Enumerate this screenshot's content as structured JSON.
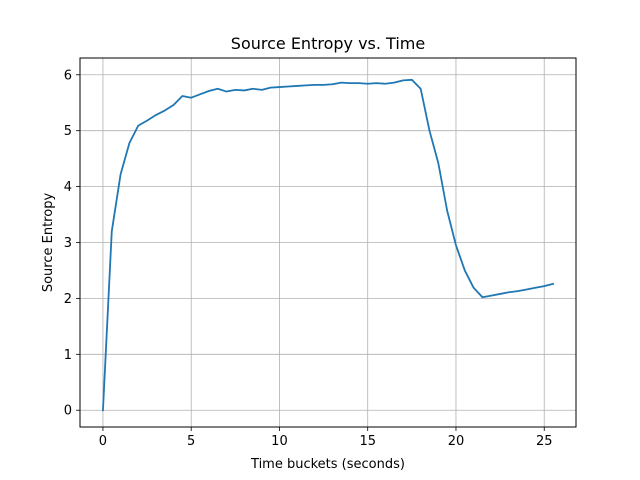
{
  "chart_data": {
    "type": "line",
    "title": "Source Entropy vs. Time",
    "xlabel": "Time buckets (seconds)",
    "ylabel": "Source Entropy",
    "xlim": [
      -1.3,
      26.8
    ],
    "ylim": [
      -0.3,
      6.3
    ],
    "xticks": [
      0,
      5,
      10,
      15,
      20,
      25
    ],
    "yticks": [
      0,
      1,
      2,
      3,
      4,
      5,
      6
    ],
    "grid": true,
    "series": [
      {
        "color": "#1f77b4",
        "x": [
          0,
          0.5,
          1,
          1.5,
          2,
          2.5,
          3,
          3.5,
          4,
          4.5,
          5,
          5.5,
          6,
          6.5,
          7,
          7.5,
          8,
          8.5,
          9,
          9.5,
          10,
          10.5,
          11,
          11.5,
          12,
          12.5,
          13,
          13.5,
          14,
          14.5,
          15,
          15.5,
          16,
          16.5,
          17,
          17.5,
          18,
          18.5,
          19,
          19.5,
          20,
          20.5,
          21,
          21.5,
          22,
          22.5,
          23,
          23.5,
          24,
          24.5,
          25,
          25.5
        ],
        "y": [
          0.0,
          3.2,
          4.22,
          4.78,
          5.09,
          5.18,
          5.28,
          5.36,
          5.46,
          5.62,
          5.59,
          5.65,
          5.71,
          5.75,
          5.7,
          5.73,
          5.72,
          5.75,
          5.73,
          5.77,
          5.78,
          5.79,
          5.8,
          5.81,
          5.82,
          5.82,
          5.83,
          5.86,
          5.85,
          5.85,
          5.84,
          5.85,
          5.84,
          5.86,
          5.9,
          5.91,
          5.75,
          5.0,
          4.42,
          3.57,
          2.95,
          2.5,
          2.19,
          2.02,
          2.05,
          2.08,
          2.11,
          2.13,
          2.16,
          2.19,
          2.22,
          2.26
        ]
      }
    ]
  }
}
